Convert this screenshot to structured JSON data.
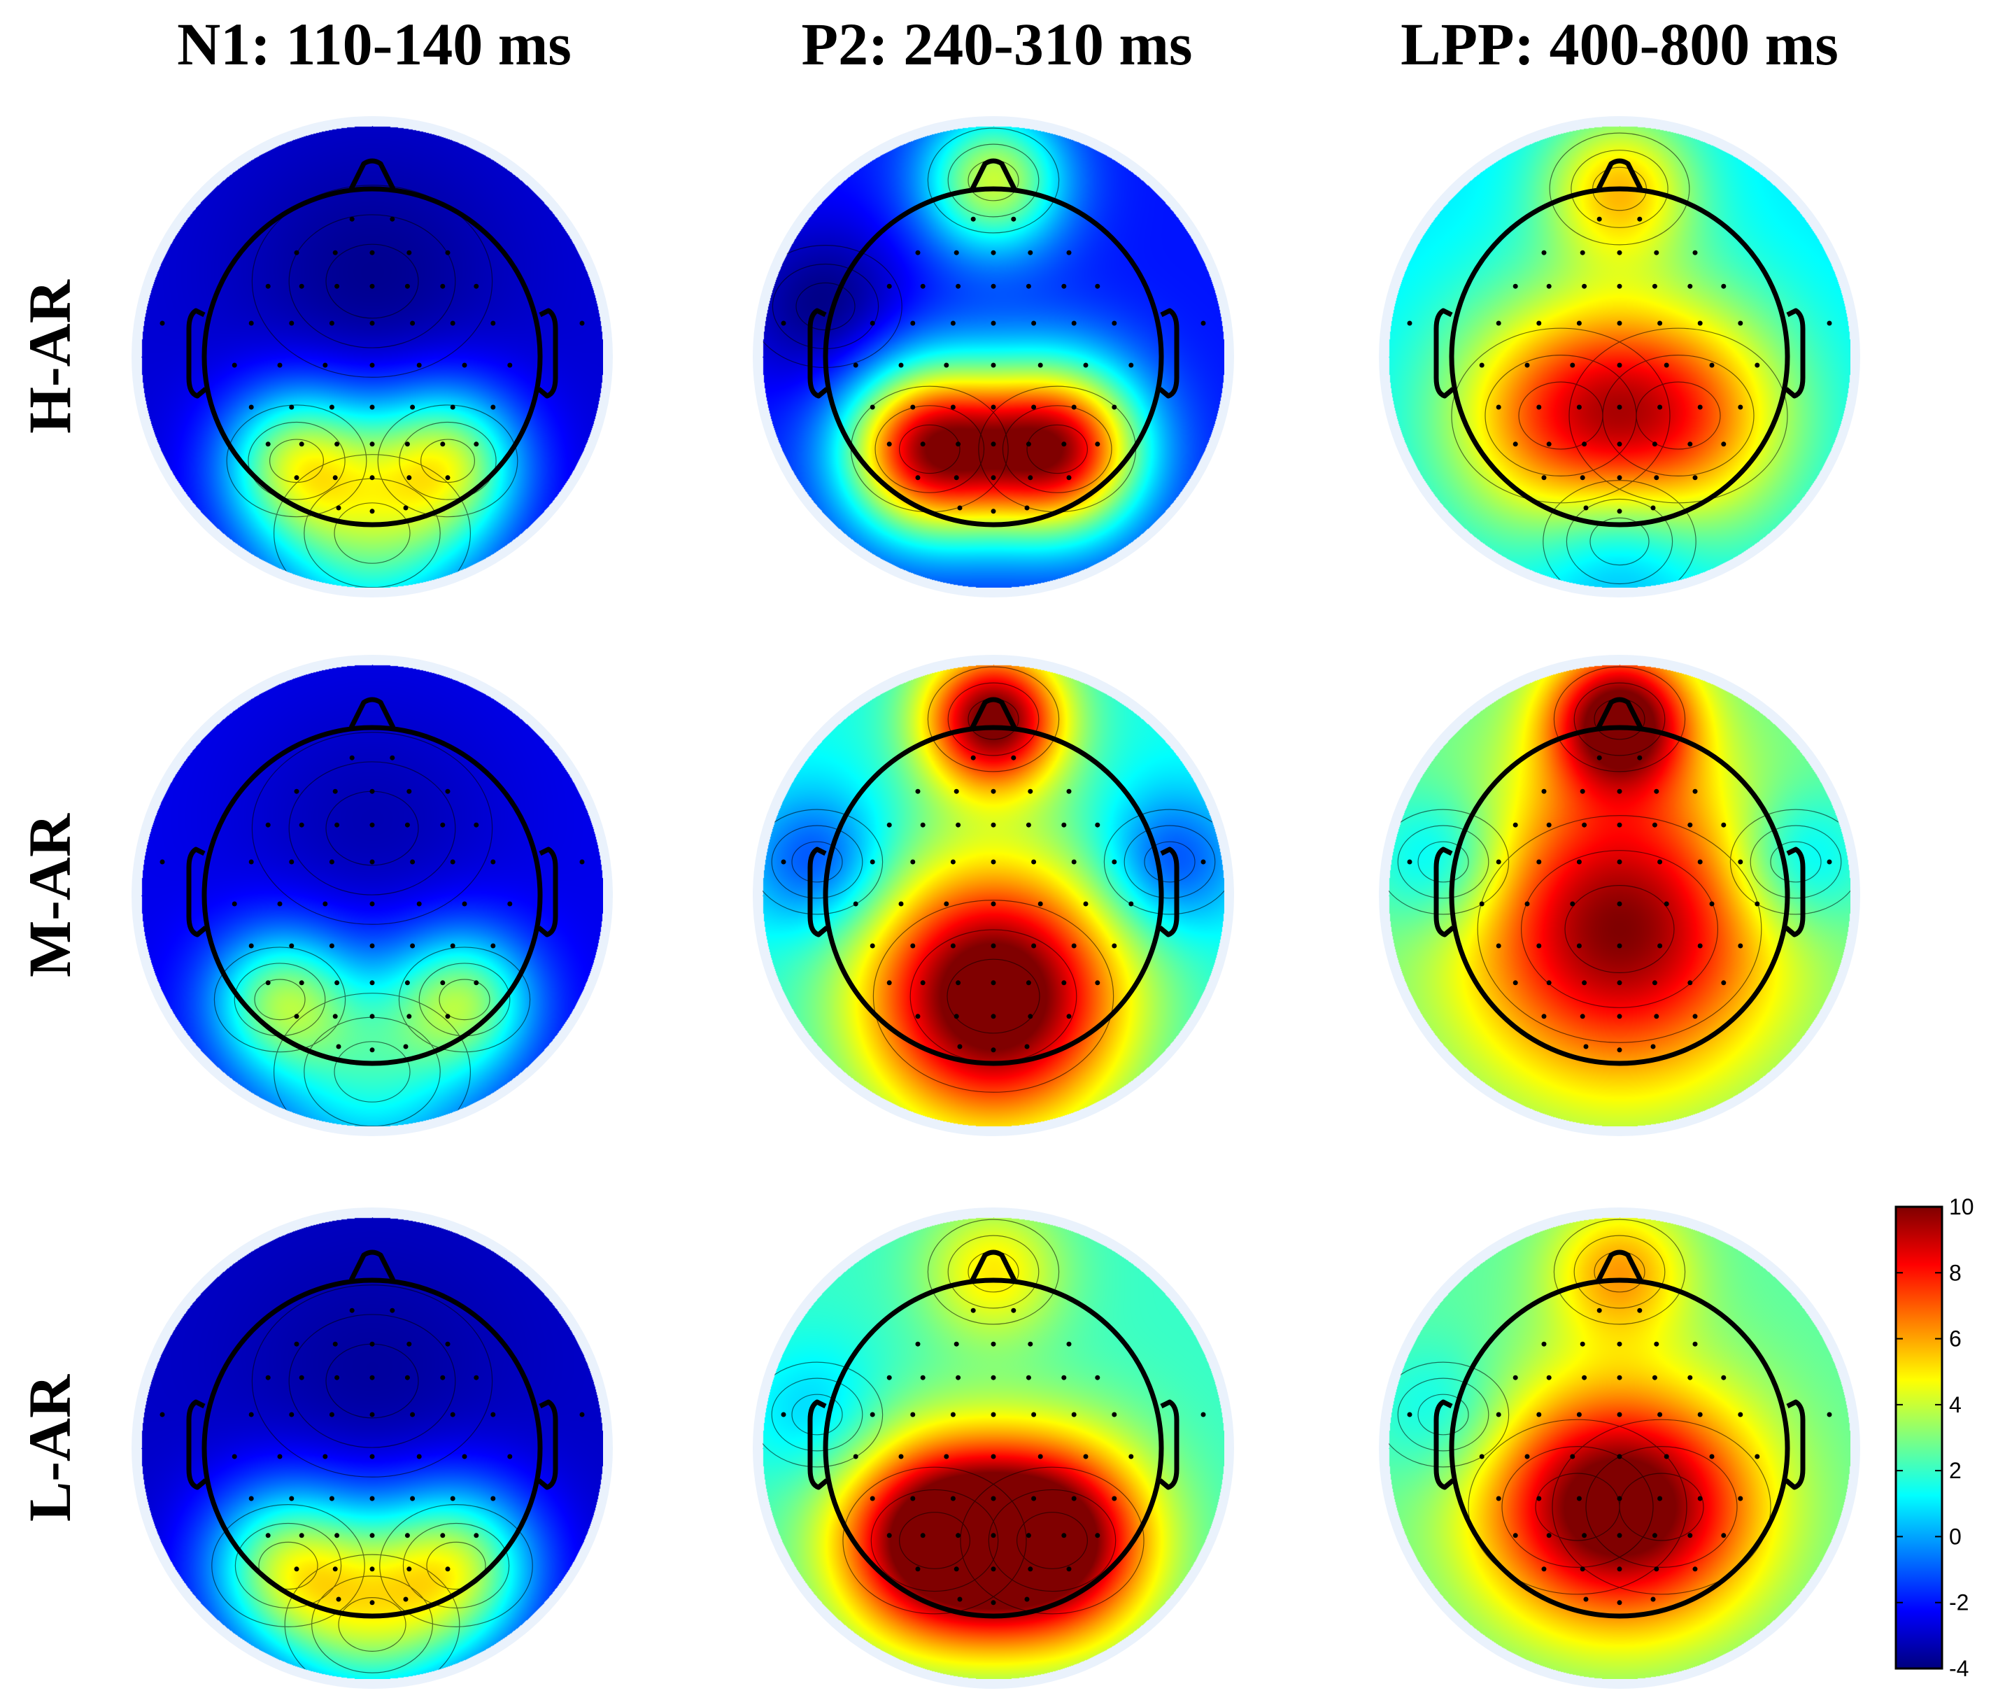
{
  "figure": {
    "columns": [
      {
        "id": "n1",
        "title": "N1: 110-140 ms"
      },
      {
        "id": "p2",
        "title": "P2: 240-310 ms"
      },
      {
        "id": "lpp",
        "title": "LPP: 400-800 ms"
      }
    ],
    "rows": [
      {
        "id": "h-ar",
        "title": "H-AR"
      },
      {
        "id": "m-ar",
        "title": "M-AR"
      },
      {
        "id": "l-ar",
        "title": "L-AR"
      }
    ]
  },
  "colorbar": {
    "min": -4,
    "max": 10,
    "ticks": [
      "10",
      "8",
      "6",
      "4",
      "2",
      "0",
      "-2",
      "-4"
    ],
    "tick_values": [
      10,
      8,
      6,
      4,
      2,
      0,
      -2,
      -4
    ],
    "stops": [
      "#00007f",
      "#0000ff",
      "#007fff",
      "#00ffff",
      "#7fff7f",
      "#ffff00",
      "#ff7f00",
      "#ff0000",
      "#7f0000"
    ]
  },
  "maps": {
    "h-ar": {
      "n1": {
        "base": -2.8,
        "blobs": [
          {
            "u": 0.0,
            "v": -0.45,
            "amp": -1.0,
            "s": 0.55
          },
          {
            "u": -0.45,
            "v": 0.62,
            "amp": 5.5,
            "s": 0.32
          },
          {
            "u": 0.45,
            "v": 0.62,
            "amp": 5.5,
            "s": 0.32
          },
          {
            "u": 0.0,
            "v": 1.05,
            "amp": 5.0,
            "s": 0.45
          }
        ]
      },
      "p2": {
        "base": -2.0,
        "blobs": [
          {
            "u": -0.38,
            "v": 0.55,
            "amp": 11.0,
            "s": 0.36
          },
          {
            "u": 0.38,
            "v": 0.55,
            "amp": 11.0,
            "s": 0.36
          },
          {
            "u": 0.0,
            "v": -1.05,
            "amp": 6.0,
            "s": 0.3
          },
          {
            "u": -1.0,
            "v": -0.3,
            "amp": -2.0,
            "s": 0.35
          }
        ]
      },
      "lpp": {
        "base": 1.0,
        "blobs": [
          {
            "u": -0.35,
            "v": 0.35,
            "amp": 5.5,
            "s": 0.5
          },
          {
            "u": 0.35,
            "v": 0.35,
            "amp": 5.5,
            "s": 0.5
          },
          {
            "u": 0.0,
            "v": -1.0,
            "amp": 4.5,
            "s": 0.32
          },
          {
            "u": 0.0,
            "v": 1.1,
            "amp": -2.0,
            "s": 0.35
          }
        ]
      }
    },
    "m-ar": {
      "n1": {
        "base": -2.5,
        "blobs": [
          {
            "u": 0.0,
            "v": -0.4,
            "amp": -0.8,
            "s": 0.55
          },
          {
            "u": -0.55,
            "v": 0.62,
            "amp": 5.0,
            "s": 0.3
          },
          {
            "u": 0.55,
            "v": 0.62,
            "amp": 5.0,
            "s": 0.3
          },
          {
            "u": 0.0,
            "v": 1.05,
            "amp": 4.0,
            "s": 0.45
          }
        ]
      },
      "p2": {
        "base": 1.5,
        "blobs": [
          {
            "u": 0.0,
            "v": 0.6,
            "amp": 10.0,
            "s": 0.55
          },
          {
            "u": 0.0,
            "v": -1.05,
            "amp": 9.0,
            "s": 0.3
          },
          {
            "u": -1.05,
            "v": -0.2,
            "amp": -3.0,
            "s": 0.3
          },
          {
            "u": 1.05,
            "v": -0.2,
            "amp": -3.0,
            "s": 0.3
          }
        ]
      },
      "lpp": {
        "base": 2.5,
        "blobs": [
          {
            "u": 0.0,
            "v": 0.2,
            "amp": 7.5,
            "s": 0.65
          },
          {
            "u": 0.0,
            "v": -1.05,
            "amp": 8.0,
            "s": 0.3
          },
          {
            "u": -1.05,
            "v": -0.2,
            "amp": -2.5,
            "s": 0.3
          },
          {
            "u": 1.05,
            "v": -0.2,
            "amp": -2.5,
            "s": 0.3
          }
        ]
      }
    },
    "l-ar": {
      "n1": {
        "base": -3.0,
        "blobs": [
          {
            "u": 0.0,
            "v": -0.4,
            "amp": -0.6,
            "s": 0.55
          },
          {
            "u": -0.5,
            "v": 0.7,
            "amp": 6.0,
            "s": 0.35
          },
          {
            "u": 0.5,
            "v": 0.7,
            "amp": 6.0,
            "s": 0.35
          },
          {
            "u": 0.0,
            "v": 1.05,
            "amp": 5.0,
            "s": 0.4
          }
        ]
      },
      "p2": {
        "base": 2.0,
        "blobs": [
          {
            "u": -0.35,
            "v": 0.55,
            "amp": 9.0,
            "s": 0.42
          },
          {
            "u": 0.35,
            "v": 0.55,
            "amp": 9.0,
            "s": 0.42
          },
          {
            "u": 0.0,
            "v": -1.05,
            "amp": 3.0,
            "s": 0.3
          },
          {
            "u": -1.05,
            "v": -0.2,
            "amp": -1.5,
            "s": 0.3
          }
        ]
      },
      "lpp": {
        "base": 2.5,
        "blobs": [
          {
            "u": -0.25,
            "v": 0.35,
            "amp": 5.0,
            "s": 0.5
          },
          {
            "u": 0.25,
            "v": 0.35,
            "amp": 5.0,
            "s": 0.5
          },
          {
            "u": 0.0,
            "v": -1.05,
            "amp": 3.5,
            "s": 0.3
          },
          {
            "u": -1.05,
            "v": -0.2,
            "amp": -1.5,
            "s": 0.3
          }
        ]
      }
    }
  }
}
